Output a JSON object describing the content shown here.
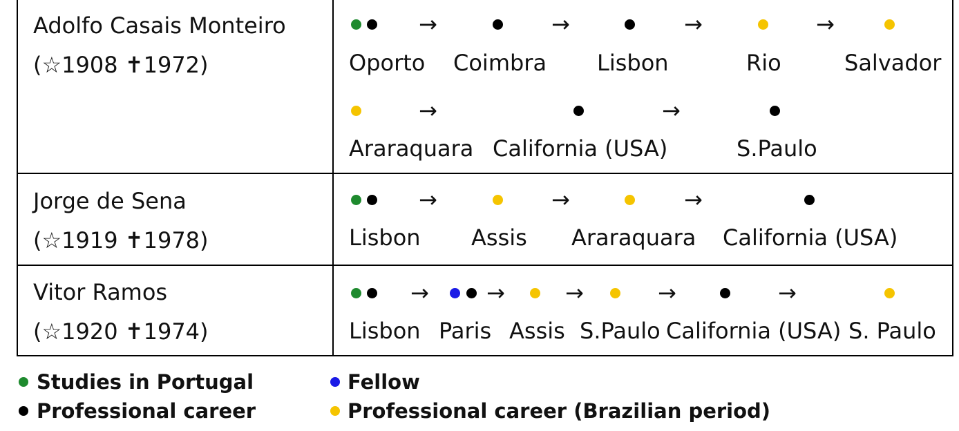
{
  "colors": {
    "studies": "#1e8a2e",
    "professional": "#000000",
    "fellow": "#1a1ae6",
    "brazilian": "#f5c400"
  },
  "rows": [
    {
      "name": "Adolfo Casais Monteiro",
      "dates": "(☆1908 ✝1972)",
      "places": [
        "Oporto",
        "Coimbra",
        "Lisbon",
        "Rio",
        "Salvador",
        "Araraquara",
        "California (USA)",
        "S.Paulo"
      ]
    },
    {
      "name": "Jorge de Sena",
      "dates": "(☆1919 ✝1978)",
      "places": [
        "Lisbon",
        "Assis",
        "Araraquara",
        "California (USA)"
      ]
    },
    {
      "name": "Vitor Ramos",
      "dates": "(☆1920 ✝1974)",
      "places": [
        "Lisbon",
        "Paris",
        "Assis",
        "S.Paulo",
        "California (USA)",
        "S. Paulo"
      ]
    }
  ],
  "arrow": "→",
  "legend": {
    "studies": "Studies in Portugal",
    "professional": "Professional career",
    "fellow": "Fellow",
    "brazilian": "Professional career (Brazilian period)"
  }
}
